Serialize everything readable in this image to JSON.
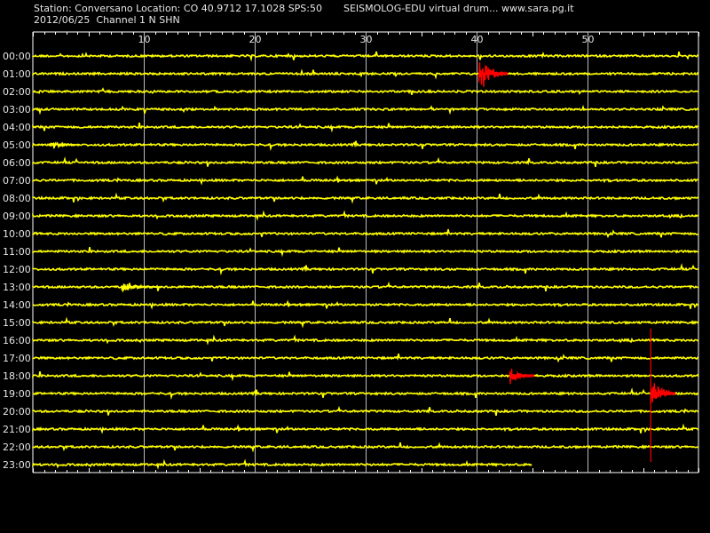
{
  "header": {
    "station_line": "Station: Conversano Location: CO 40.9712 17.1028 SPS:50",
    "date_line": "2012/06/25  Channel 1 N SHN",
    "app_line": "SEISMOLOG-EDU virtual drum... www.sara.pg.it"
  },
  "colors": {
    "background": "#000000",
    "trace": "#ffff00",
    "event": "#ff0000",
    "grid": "#ffffff",
    "text": "#e6e6e6"
  },
  "chart_data": {
    "type": "line",
    "title": "",
    "xlabel": "",
    "ylabel": "",
    "x_ticks": [
      10,
      20,
      30,
      40,
      50
    ],
    "x_range_minutes": [
      0,
      60
    ],
    "hours": [
      "00:00",
      "01:00",
      "02:00",
      "03:00",
      "04:00",
      "05:00",
      "06:00",
      "07:00",
      "08:00",
      "09:00",
      "10:00",
      "11:00",
      "12:00",
      "13:00",
      "14:00",
      "15:00",
      "16:00",
      "17:00",
      "18:00",
      "19:00",
      "20:00",
      "21:00",
      "22:00",
      "23:00"
    ],
    "last_hour_end_minute": 45,
    "events": [
      {
        "hour": "01:00",
        "minute": 40.2,
        "duration_min": 2.6,
        "color": "red",
        "amplitude": "large"
      },
      {
        "hour": "18:00",
        "minute": 43.0,
        "duration_min": 2.2,
        "color": "red",
        "amplitude": "medium"
      },
      {
        "hour": "19:00",
        "minute": 55.7,
        "duration_min": 2.2,
        "color": "red",
        "amplitude": "large"
      },
      {
        "hour": "05:00",
        "minute": 1.5,
        "duration_min": 2.5,
        "color": "yellow",
        "amplitude": "small"
      },
      {
        "hour": "13:00",
        "minute": 8.0,
        "duration_min": 3.5,
        "color": "yellow",
        "amplitude": "small"
      }
    ]
  }
}
